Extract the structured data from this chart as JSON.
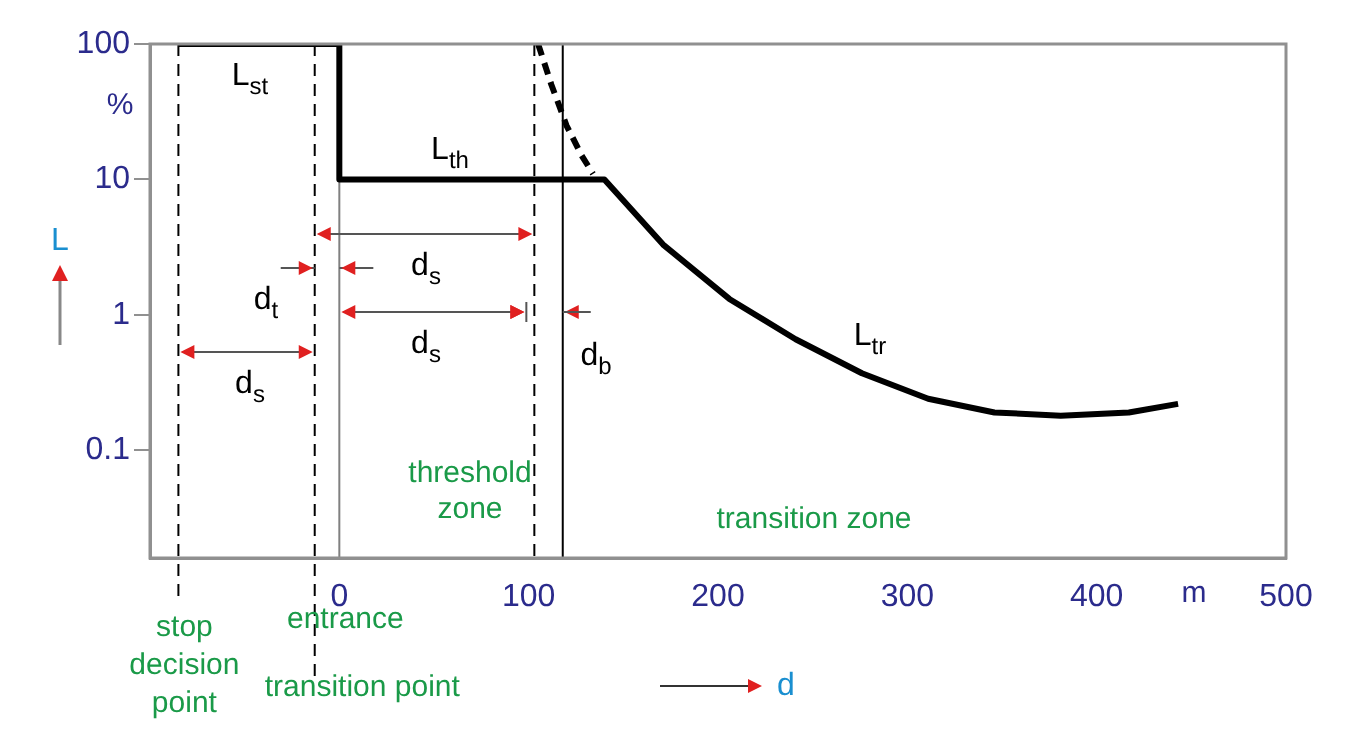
{
  "chart_data": {
    "type": "line",
    "xlabel": "d",
    "ylabel": "L",
    "log": "y",
    "xlim": [
      -100,
      500
    ],
    "xticks": [
      0,
      100,
      200,
      300,
      400,
      500
    ],
    "ylim": [
      0.016,
      100
    ],
    "yticks": [
      {
        "value": 0.1,
        "label": "0.1"
      },
      1,
      10,
      100
    ],
    "marker": "none",
    "legend": false,
    "series": [
      {
        "color": "#000000",
        "line_style": "solid",
        "x": [
          -85,
          0,
          0,
          140,
          171,
          206,
          241,
          276,
          311,
          346,
          381,
          417,
          443
        ],
        "values": [
          100,
          100,
          10,
          10,
          3.3,
          1.31,
          0.66,
          0.37,
          0.24,
          0.19,
          0.18,
          0.19,
          0.22
        ]
      },
      {
        "color": "#000000",
        "line_style": "dashed",
        "x": [
          105,
          112,
          120,
          128,
          134
        ],
        "values": [
          100,
          50,
          25,
          15,
          11
        ]
      }
    ],
    "ref_lines": [
      {
        "axis": "x",
        "value": -85,
        "label": "stop decision point",
        "line_style": "dashed",
        "color": "#000000"
      },
      {
        "axis": "x",
        "value": -13,
        "label": "transition point",
        "line_style": "dashed",
        "color": "#000000"
      },
      {
        "axis": "x",
        "value": 0,
        "label": "entrance",
        "line_style": "solid",
        "color": "#808080"
      },
      {
        "axis": "x",
        "value": 103,
        "label": null,
        "line_style": "dashed",
        "color": "#000000"
      },
      {
        "axis": "x",
        "value": 118,
        "label": null,
        "line_style": "solid",
        "color": "#000000"
      }
    ],
    "annotations": [
      "L$_{st}$",
      "L$_{th}$",
      "L$_{tr}$",
      "d$_{s}$",
      "d$_{t}$",
      "d$_{s}$",
      "d$_{s}$",
      "d$_{b}$",
      "threshold zone",
      "transition zone",
      "%",
      "m"
    ]
  }
}
